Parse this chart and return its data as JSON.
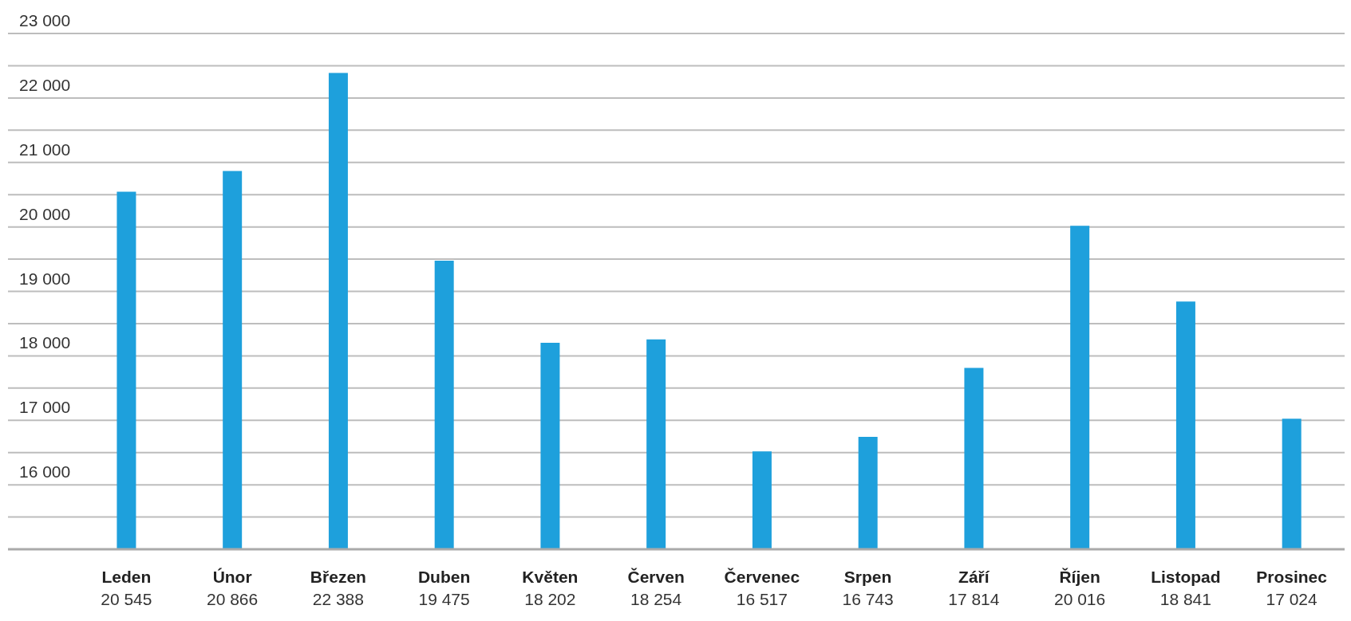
{
  "chart_data": {
    "type": "bar",
    "categories": [
      "Leden",
      "Únor",
      "Březen",
      "Duben",
      "Květen",
      "Červen",
      "Červenec",
      "Srpen",
      "Září",
      "Říjen",
      "Listopad",
      "Prosinec"
    ],
    "values": [
      20545,
      20866,
      22388,
      19475,
      18202,
      18254,
      16517,
      16743,
      17814,
      20016,
      18841,
      17024
    ],
    "value_labels": [
      "20 545",
      "20 866",
      "22 388",
      "19 475",
      "18 202",
      "18 254",
      "16 517",
      "16 743",
      "17 814",
      "20 016",
      "18 841",
      "17 024"
    ],
    "color": "#1ea0dc",
    "ylim": [
      15000,
      23000
    ],
    "yticks": [
      {
        "value": 15000,
        "label": null
      },
      {
        "value": 15500,
        "label": null
      },
      {
        "value": 16000,
        "label": "16 000"
      },
      {
        "value": 16500,
        "label": null
      },
      {
        "value": 17000,
        "label": "17 000"
      },
      {
        "value": 17500,
        "label": null
      },
      {
        "value": 18000,
        "label": "18 000"
      },
      {
        "value": 18500,
        "label": null
      },
      {
        "value": 19000,
        "label": "19 000"
      },
      {
        "value": 19500,
        "label": null
      },
      {
        "value": 20000,
        "label": "20 000"
      },
      {
        "value": 20500,
        "label": null
      },
      {
        "value": 21000,
        "label": "21 000"
      },
      {
        "value": 21500,
        "label": null
      },
      {
        "value": 22000,
        "label": "22 000"
      },
      {
        "value": 22500,
        "label": null
      },
      {
        "value": 23000,
        "label": "23 000"
      }
    ],
    "grid": "y"
  }
}
